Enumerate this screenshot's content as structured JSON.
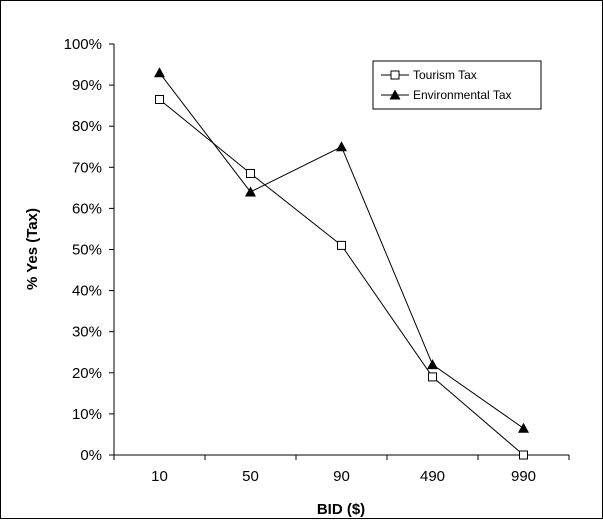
{
  "chart_data": {
    "type": "line",
    "categories": [
      "10",
      "50",
      "90",
      "490",
      "990"
    ],
    "series": [
      {
        "name": "Tourism Tax",
        "values": [
          0.865,
          0.685,
          0.51,
          0.19,
          0.0
        ],
        "marker": "square-open",
        "color": "#000000"
      },
      {
        "name": "Environmental Tax",
        "values": [
          0.93,
          0.64,
          0.75,
          0.22,
          0.065
        ],
        "marker": "triangle-filled",
        "color": "#000000"
      }
    ],
    "yticks": [
      "0%",
      "10%",
      "20%",
      "30%",
      "40%",
      "50%",
      "60%",
      "70%",
      "80%",
      "90%",
      "100%"
    ],
    "ylim": [
      0,
      1
    ],
    "xlabel": "BID ($)",
    "ylabel": "% Yes (Tax)",
    "grid": false,
    "legend_position": "top-right"
  }
}
